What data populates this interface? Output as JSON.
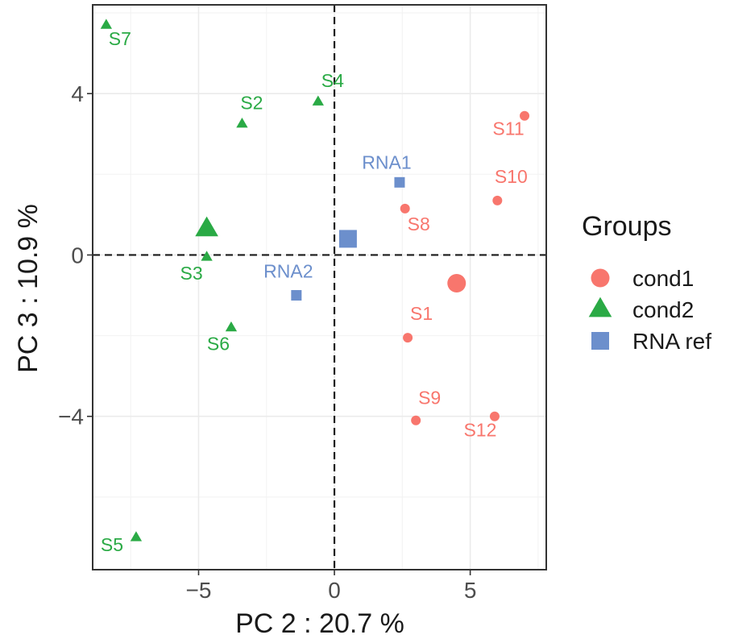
{
  "chart_data": {
    "type": "scatter",
    "xlabel": "PC 2 : 20.7 %",
    "ylabel": "PC 3 : 10.9 %",
    "xlim": [
      -8.9,
      7.8
    ],
    "ylim": [
      -7.8,
      6.2
    ],
    "xticks": [
      -5,
      0,
      5
    ],
    "yticks": [
      -4,
      0,
      4
    ],
    "x_tick_labels": [
      "−5",
      "0",
      "5"
    ],
    "y_tick_labels": [
      "−4",
      "0",
      "4"
    ],
    "grid": true,
    "reference_lines": {
      "x": 0,
      "y": 0,
      "style": "dashed"
    },
    "legend": {
      "title": "Groups",
      "position": "right",
      "entries": [
        {
          "label": "cond1",
          "shape": "circle",
          "color": "#F8766D"
        },
        {
          "label": "cond2",
          "shape": "triangle",
          "color": "#2AAA45"
        },
        {
          "label": "RNA ref",
          "shape": "square",
          "color": "#6C8FCC"
        }
      ]
    },
    "series": [
      {
        "name": "cond1",
        "shape": "circle",
        "color": "#F8766D",
        "points": [
          {
            "label": "S1",
            "x": 2.7,
            "y": -2.05
          },
          {
            "label": "S8",
            "x": 2.6,
            "y": 1.15
          },
          {
            "label": "S9",
            "x": 3.0,
            "y": -4.1
          },
          {
            "label": "S10",
            "x": 6.0,
            "y": 1.35
          },
          {
            "label": "S11",
            "x": 7.0,
            "y": 3.45
          },
          {
            "label": "S12",
            "x": 5.9,
            "y": -4.0
          }
        ],
        "centroid": {
          "x": 4.5,
          "y": -0.7
        }
      },
      {
        "name": "cond2",
        "shape": "triangle",
        "color": "#2AAA45",
        "points": [
          {
            "label": "S2",
            "x": -3.4,
            "y": 3.25
          },
          {
            "label": "S3",
            "x": -4.7,
            "y": -0.05
          },
          {
            "label": "S4",
            "x": -0.6,
            "y": 3.8
          },
          {
            "label": "S5",
            "x": -7.3,
            "y": -7.0
          },
          {
            "label": "S6",
            "x": -3.8,
            "y": -1.8
          },
          {
            "label": "S7",
            "x": -8.4,
            "y": 5.7
          }
        ],
        "centroid": {
          "x": -4.7,
          "y": 0.65
        }
      },
      {
        "name": "RNA ref",
        "shape": "square",
        "color": "#6C8FCC",
        "points": [
          {
            "label": "RNA1",
            "x": 2.4,
            "y": 1.8
          },
          {
            "label": "RNA2",
            "x": -1.4,
            "y": -1.0
          }
        ],
        "centroid": {
          "x": 0.5,
          "y": 0.4
        }
      }
    ]
  }
}
